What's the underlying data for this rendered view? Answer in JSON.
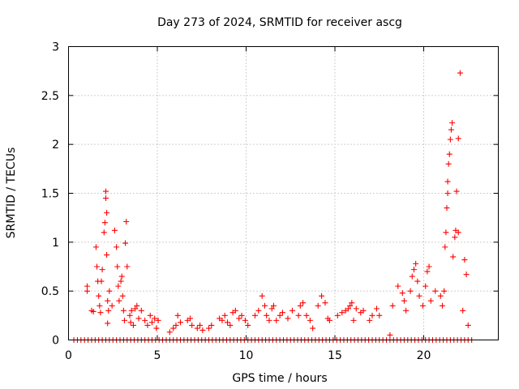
{
  "chart_data": {
    "type": "scatter",
    "title": "Day 273 of 2024, SRMTID for receiver ascg",
    "xlabel": "GPS time / hours",
    "ylabel": "SRMTID / TECUs",
    "xlim": [
      0,
      24.2
    ],
    "ylim": [
      0,
      3
    ],
    "xticks": [
      0,
      5,
      10,
      15,
      20
    ],
    "xtick_labels": [
      "0",
      "5",
      "10",
      "15",
      "20"
    ],
    "yticks": [
      0,
      0.5,
      1,
      1.5,
      2,
      2.5,
      3
    ],
    "ytick_labels": [
      "0",
      "0.5",
      "1",
      "1.5",
      "2",
      "2.5",
      "3"
    ],
    "grid": true,
    "marker": "+",
    "series": [
      {
        "name": "SRMTID",
        "color": "#ff0000",
        "x": [
          1.05,
          1.05,
          1.3,
          1.4,
          1.55,
          1.6,
          1.65,
          1.7,
          1.75,
          1.8,
          1.85,
          1.9,
          2.0,
          2.05,
          2.1,
          2.1,
          2.15,
          2.15,
          2.2,
          2.2,
          2.25,
          2.3,
          2.45,
          2.6,
          2.7,
          2.75,
          2.8,
          2.85,
          2.95,
          3.0,
          3.05,
          3.1,
          3.15,
          3.2,
          3.25,
          3.3,
          3.45,
          3.5,
          3.55,
          3.65,
          3.75,
          3.85,
          3.95,
          4.1,
          4.3,
          4.45,
          4.6,
          4.7,
          4.85,
          4.95,
          5.05,
          5.7,
          5.9,
          6.05,
          6.15,
          6.3,
          6.7,
          6.85,
          6.95,
          7.25,
          7.4,
          7.55,
          7.9,
          8.05,
          8.5,
          8.65,
          8.8,
          8.95,
          9.1,
          9.25,
          9.4,
          9.6,
          9.75,
          9.95,
          10.1,
          10.5,
          10.7,
          10.9,
          11.05,
          11.15,
          11.3,
          11.45,
          11.55,
          11.7,
          11.9,
          12.05,
          12.35,
          12.6,
          12.95,
          13.05,
          13.2,
          13.4,
          13.6,
          13.75,
          14.05,
          14.25,
          14.45,
          14.6,
          14.7,
          15.15,
          15.4,
          15.6,
          15.75,
          15.85,
          15.95,
          16.05,
          16.2,
          16.45,
          16.6,
          16.95,
          17.1,
          17.35,
          17.5,
          18.1,
          18.25,
          18.55,
          18.8,
          18.9,
          19.0,
          19.25,
          19.35,
          19.45,
          19.55,
          19.65,
          19.75,
          19.95,
          20.1,
          20.2,
          20.3,
          20.4,
          20.65,
          20.95,
          21.05,
          21.15,
          21.2,
          21.25,
          21.3,
          21.35,
          21.35,
          21.4,
          21.45,
          21.5,
          21.55,
          21.6,
          21.65,
          21.75,
          21.8,
          21.85,
          21.95,
          21.95,
          22.05,
          22.2,
          22.3,
          22.4,
          22.5
        ],
        "y": [
          0.55,
          0.5,
          0.3,
          0.29,
          0.95,
          0.75,
          0.6,
          0.45,
          0.35,
          0.28,
          0.6,
          0.72,
          1.1,
          1.2,
          1.52,
          1.45,
          1.3,
          0.87,
          0.4,
          0.17,
          0.3,
          0.5,
          0.35,
          1.12,
          0.95,
          0.75,
          0.55,
          0.4,
          0.6,
          0.65,
          0.45,
          0.3,
          0.2,
          0.99,
          1.21,
          0.75,
          0.25,
          0.18,
          0.3,
          0.15,
          0.32,
          0.35,
          0.22,
          0.3,
          0.2,
          0.15,
          0.25,
          0.18,
          0.22,
          0.12,
          0.2,
          0.08,
          0.12,
          0.15,
          0.25,
          0.18,
          0.2,
          0.22,
          0.15,
          0.12,
          0.15,
          0.1,
          0.12,
          0.15,
          0.22,
          0.2,
          0.25,
          0.18,
          0.15,
          0.28,
          0.3,
          0.22,
          0.25,
          0.2,
          0.15,
          0.25,
          0.3,
          0.45,
          0.35,
          0.25,
          0.2,
          0.32,
          0.35,
          0.2,
          0.25,
          0.28,
          0.22,
          0.3,
          0.25,
          0.35,
          0.38,
          0.25,
          0.2,
          0.12,
          0.35,
          0.45,
          0.38,
          0.22,
          0.2,
          0.25,
          0.28,
          0.3,
          0.32,
          0.35,
          0.38,
          0.2,
          0.32,
          0.28,
          0.3,
          0.2,
          0.25,
          0.32,
          0.25,
          0.05,
          0.35,
          0.55,
          0.48,
          0.4,
          0.3,
          0.5,
          0.65,
          0.72,
          0.78,
          0.6,
          0.45,
          0.35,
          0.55,
          0.7,
          0.75,
          0.4,
          0.5,
          0.45,
          0.35,
          0.5,
          0.95,
          1.1,
          1.35,
          1.5,
          1.62,
          1.8,
          1.9,
          2.05,
          2.15,
          2.22,
          0.85,
          1.05,
          1.12,
          1.52,
          2.06,
          1.1,
          2.73,
          0.3,
          0.82,
          0.67,
          0.15
        ],
        "zero_x": [
          0.3,
          0.5,
          0.7,
          0.9,
          1.1,
          1.3,
          1.5,
          1.7,
          1.9,
          2.1,
          2.3,
          2.5,
          2.7,
          2.9,
          3.1,
          3.3,
          3.5,
          3.7,
          3.9,
          4.1,
          4.3,
          4.5,
          4.7,
          4.9,
          5.1,
          5.3,
          5.5,
          5.7,
          5.9,
          6.1,
          6.3,
          6.5,
          6.7,
          6.9,
          7.1,
          7.3,
          7.5,
          7.7,
          7.9,
          8.1,
          8.3,
          8.5,
          8.7,
          8.9,
          9.1,
          9.3,
          9.5,
          9.7,
          9.9,
          10.1,
          10.3,
          10.5,
          10.7,
          10.9,
          11.1,
          11.3,
          11.5,
          11.7,
          11.9,
          12.1,
          12.3,
          12.5,
          12.7,
          12.9,
          13.1,
          13.3,
          13.5,
          13.7,
          13.9,
          14.1,
          14.3,
          14.5,
          14.7,
          14.9,
          15.1,
          15.3,
          15.5,
          15.7,
          15.9,
          16.1,
          16.3,
          16.5,
          16.7,
          16.9,
          17.1,
          17.3,
          17.5,
          17.7,
          17.9,
          18.1,
          18.3,
          18.5,
          18.7,
          18.9,
          19.1,
          19.3,
          19.5,
          19.7,
          19.9,
          20.1,
          20.3,
          20.5,
          20.7,
          20.9,
          21.1,
          21.3,
          21.5,
          21.7,
          21.9,
          22.1,
          22.3,
          22.5,
          22.7
        ]
      }
    ]
  }
}
